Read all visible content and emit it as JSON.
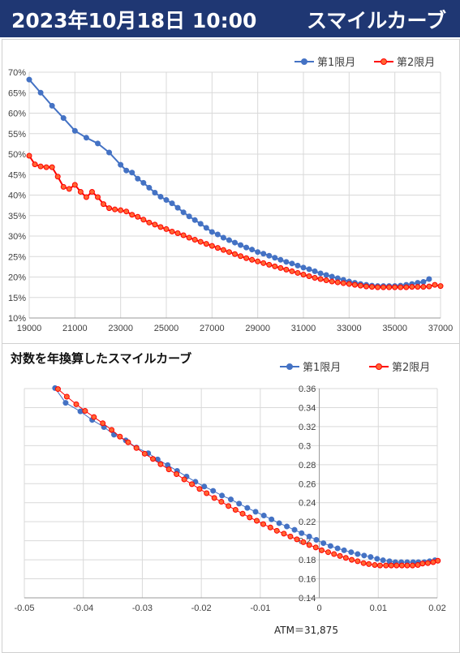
{
  "header": {
    "title": "2023年10月18日 10:00",
    "subtitle": "スマイルカーブ"
  },
  "colors": {
    "header_bg": "#1f3773",
    "series1": "#4472c4",
    "series2": "#ff0000",
    "series2_fill": "#ff6633",
    "grid": "#d9d9d9"
  },
  "chart_data": [
    {
      "type": "line",
      "title": "",
      "xlabel": "",
      "ylabel": "",
      "xlim": [
        19000,
        37000
      ],
      "ylim": [
        10,
        70
      ],
      "x_ticks": [
        "19000",
        "21000",
        "23000",
        "25000",
        "27000",
        "29000",
        "31000",
        "33000",
        "35000",
        "37000"
      ],
      "y_ticks": [
        "10%",
        "15%",
        "20%",
        "25%",
        "30%",
        "35%",
        "40%",
        "45%",
        "50%",
        "55%",
        "60%",
        "65%",
        "70%"
      ],
      "legend_position": "top-right",
      "grid": true,
      "series": [
        {
          "name": "第1限月",
          "color": "#4472c4",
          "points": [
            [
              19000,
              68.2
            ],
            [
              19500,
              65
            ],
            [
              20000,
              61.8
            ],
            [
              20500,
              58.8
            ],
            [
              21000,
              55.7
            ],
            [
              21500,
              54
            ],
            [
              22000,
              52.6
            ],
            [
              22500,
              50.4
            ],
            [
              23000,
              47.4
            ],
            [
              23250,
              46
            ],
            [
              23500,
              45.5
            ],
            [
              23750,
              44
            ],
            [
              24000,
              43
            ],
            [
              24250,
              41.8
            ],
            [
              24500,
              40.6
            ],
            [
              24750,
              39.6
            ],
            [
              25000,
              38.8
            ],
            [
              25250,
              38
            ],
            [
              25500,
              36.9
            ],
            [
              25750,
              35.8
            ],
            [
              26000,
              34.8
            ],
            [
              26250,
              33.9
            ],
            [
              26500,
              33
            ],
            [
              26750,
              32
            ],
            [
              27000,
              31
            ],
            [
              27250,
              30.4
            ],
            [
              27500,
              29.6
            ],
            [
              27750,
              29
            ],
            [
              28000,
              28.4
            ],
            [
              28250,
              27.8
            ],
            [
              28500,
              27.2
            ],
            [
              28750,
              26.7
            ],
            [
              29000,
              26.1
            ],
            [
              29250,
              25.7
            ],
            [
              29500,
              25.2
            ],
            [
              29750,
              24.7
            ],
            [
              30000,
              24.2
            ],
            [
              30250,
              23.7
            ],
            [
              30500,
              23.3
            ],
            [
              30750,
              22.8
            ],
            [
              31000,
              22.3
            ],
            [
              31250,
              21.9
            ],
            [
              31500,
              21.4
            ],
            [
              31750,
              20.9
            ],
            [
              32000,
              20.5
            ],
            [
              32250,
              20.1
            ],
            [
              32500,
              19.7
            ],
            [
              32750,
              19.3
            ],
            [
              33000,
              18.9
            ],
            [
              33250,
              18.6
            ],
            [
              33500,
              18.3
            ],
            [
              33750,
              18.1
            ],
            [
              34000,
              17.9
            ],
            [
              34250,
              17.8
            ],
            [
              34500,
              17.8
            ],
            [
              34750,
              17.8
            ],
            [
              35000,
              17.8
            ],
            [
              35250,
              17.9
            ],
            [
              35500,
              18.1
            ],
            [
              35750,
              18.3
            ],
            [
              36000,
              18.6
            ],
            [
              36250,
              18.8
            ],
            [
              36500,
              19.5
            ]
          ]
        },
        {
          "name": "第2限月",
          "color": "#ff0000",
          "points": [
            [
              19000,
              49.6
            ],
            [
              19250,
              47.5
            ],
            [
              19500,
              47
            ],
            [
              19750,
              46.8
            ],
            [
              20000,
              46.8
            ],
            [
              20250,
              44.5
            ],
            [
              20500,
              42
            ],
            [
              20750,
              41.5
            ],
            [
              21000,
              42.5
            ],
            [
              21250,
              40.8
            ],
            [
              21500,
              39.5
            ],
            [
              21750,
              40.8
            ],
            [
              22000,
              39.5
            ],
            [
              22250,
              37.8
            ],
            [
              22500,
              36.8
            ],
            [
              22750,
              36.5
            ],
            [
              23000,
              36.3
            ],
            [
              23250,
              36
            ],
            [
              23500,
              35.2
            ],
            [
              23750,
              34.7
            ],
            [
              24000,
              34
            ],
            [
              24250,
              33.3
            ],
            [
              24500,
              32.8
            ],
            [
              24750,
              32.2
            ],
            [
              25000,
              31.7
            ],
            [
              25250,
              31.1
            ],
            [
              25500,
              30.7
            ],
            [
              25750,
              30.2
            ],
            [
              26000,
              29.6
            ],
            [
              26250,
              29.1
            ],
            [
              26500,
              28.6
            ],
            [
              26750,
              28.1
            ],
            [
              27000,
              27.6
            ],
            [
              27250,
              27.1
            ],
            [
              27500,
              26.6
            ],
            [
              27750,
              26.1
            ],
            [
              28000,
              25.6
            ],
            [
              28250,
              25.1
            ],
            [
              28500,
              24.6
            ],
            [
              28750,
              24.2
            ],
            [
              29000,
              23.8
            ],
            [
              29250,
              23.4
            ],
            [
              29500,
              23
            ],
            [
              29750,
              22.6
            ],
            [
              30000,
              22.2
            ],
            [
              30250,
              21.8
            ],
            [
              30500,
              21.4
            ],
            [
              30750,
              21
            ],
            [
              31000,
              20.6
            ],
            [
              31250,
              20.2
            ],
            [
              31500,
              19.8
            ],
            [
              31750,
              19.5
            ],
            [
              32000,
              19.2
            ],
            [
              32250,
              18.9
            ],
            [
              32500,
              18.7
            ],
            [
              32750,
              18.5
            ],
            [
              33000,
              18.3
            ],
            [
              33250,
              18.1
            ],
            [
              33500,
              17.9
            ],
            [
              33750,
              17.7
            ],
            [
              34000,
              17.6
            ],
            [
              34250,
              17.5
            ],
            [
              34500,
              17.5
            ],
            [
              34750,
              17.5
            ],
            [
              35000,
              17.5
            ],
            [
              35250,
              17.5
            ],
            [
              35500,
              17.5
            ],
            [
              35750,
              17.6
            ],
            [
              36000,
              17.6
            ],
            [
              36250,
              17.6
            ],
            [
              36500,
              17.7
            ],
            [
              36750,
              18.1
            ],
            [
              37000,
              17.8
            ]
          ]
        }
      ]
    },
    {
      "type": "line",
      "title": "対数を年換算したスマイルカーブ",
      "xlabel": "",
      "ylabel": "",
      "xlim": [
        -0.05,
        0.02
      ],
      "ylim": [
        0.14,
        0.36
      ],
      "x_ticks": [
        "-0.05",
        "-0.04",
        "-0.03",
        "-0.02",
        "-0.01",
        "0",
        "0.01",
        "0.02"
      ],
      "y_ticks": [
        "0.14",
        "0.16",
        "0.18",
        "0.2",
        "0.22",
        "0.24",
        "0.26",
        "0.28",
        "0.3",
        "0.32",
        "0.34",
        "0.36"
      ],
      "legend_position": "top-right",
      "grid": true,
      "annotation": "ATM＝31,875",
      "series": [
        {
          "name": "第1限月",
          "color": "#4472c4",
          "points": [
            [
              -0.0448,
              0.3605
            ],
            [
              -0.043,
              0.345
            ],
            [
              -0.0405,
              0.336
            ],
            [
              -0.0385,
              0.327
            ],
            [
              -0.0365,
              0.3195
            ],
            [
              -0.0348,
              0.3115
            ],
            [
              -0.0328,
              0.3055
            ],
            [
              -0.031,
              0.298
            ],
            [
              -0.029,
              0.292
            ],
            [
              -0.0274,
              0.2855
            ],
            [
              -0.0257,
              0.2795
            ],
            [
              -0.0241,
              0.2735
            ],
            [
              -0.0225,
              0.2675
            ],
            [
              -0.021,
              0.262
            ],
            [
              -0.0195,
              0.257
            ],
            [
              -0.018,
              0.2525
            ],
            [
              -0.0165,
              0.2475
            ],
            [
              -0.015,
              0.2435
            ],
            [
              -0.0136,
              0.239
            ],
            [
              -0.0122,
              0.2345
            ],
            [
              -0.0108,
              0.2305
            ],
            [
              -0.0094,
              0.2265
            ],
            [
              -0.0081,
              0.2225
            ],
            [
              -0.0068,
              0.2185
            ],
            [
              -0.0055,
              0.215
            ],
            [
              -0.0042,
              0.2115
            ],
            [
              -0.003,
              0.208
            ],
            [
              -0.0017,
              0.2045
            ],
            [
              -0.0005,
              0.201
            ],
            [
              0.0007,
              0.1975
            ],
            [
              0.0019,
              0.1945
            ],
            [
              0.0031,
              0.192
            ],
            [
              0.0042,
              0.19
            ],
            [
              0.0054,
              0.188
            ],
            [
              0.0065,
              0.186
            ],
            [
              0.0076,
              0.1845
            ],
            [
              0.0087,
              0.183
            ],
            [
              0.0098,
              0.181
            ],
            [
              0.0108,
              0.1795
            ],
            [
              0.0119,
              0.1785
            ],
            [
              0.0129,
              0.1775
            ],
            [
              0.0139,
              0.1775
            ],
            [
              0.0149,
              0.1775
            ],
            [
              0.0159,
              0.1775
            ],
            [
              0.0168,
              0.1775
            ],
            [
              0.0178,
              0.1775
            ],
            [
              0.0187,
              0.1785
            ],
            [
              0.0196,
              0.1795
            ]
          ]
        },
        {
          "name": "第2限月",
          "color": "#ff0000",
          "points": [
            [
              -0.0443,
              0.3595
            ],
            [
              -0.0428,
              0.3515
            ],
            [
              -0.0412,
              0.3435
            ],
            [
              -0.0397,
              0.3365
            ],
            [
              -0.0382,
              0.33
            ],
            [
              -0.0367,
              0.3235
            ],
            [
              -0.0352,
              0.3165
            ],
            [
              -0.0338,
              0.3095
            ],
            [
              -0.0324,
              0.3035
            ],
            [
              -0.031,
              0.2975
            ],
            [
              -0.0296,
              0.2915
            ],
            [
              -0.0282,
              0.286
            ],
            [
              -0.0269,
              0.2805
            ],
            [
              -0.0255,
              0.275
            ],
            [
              -0.0242,
              0.27
            ],
            [
              -0.0229,
              0.2645
            ],
            [
              -0.0216,
              0.2595
            ],
            [
              -0.0203,
              0.2545
            ],
            [
              -0.0191,
              0.25
            ],
            [
              -0.0178,
              0.245
            ],
            [
              -0.0166,
              0.241
            ],
            [
              -0.0154,
              0.2365
            ],
            [
              -0.0142,
              0.2325
            ],
            [
              -0.013,
              0.2285
            ],
            [
              -0.0118,
              0.2245
            ],
            [
              -0.0106,
              0.221
            ],
            [
              -0.0095,
              0.2175
            ],
            [
              -0.0083,
              0.214
            ],
            [
              -0.0072,
              0.2105
            ],
            [
              -0.006,
              0.2075
            ],
            [
              -0.0049,
              0.2045
            ],
            [
              -0.0038,
              0.2015
            ],
            [
              -0.0027,
              0.1985
            ],
            [
              -0.0017,
              0.1955
            ],
            [
              -0.0006,
              0.193
            ],
            [
              0.0004,
              0.19
            ],
            [
              0.0015,
              0.188
            ],
            [
              0.0025,
              0.186
            ],
            [
              0.0035,
              0.184
            ],
            [
              0.0045,
              0.182
            ],
            [
              0.0055,
              0.18
            ],
            [
              0.0065,
              0.1785
            ],
            [
              0.0075,
              0.1765
            ],
            [
              0.0084,
              0.1755
            ],
            [
              0.0094,
              0.1745
            ],
            [
              0.0103,
              0.174
            ],
            [
              0.0113,
              0.174
            ],
            [
              0.0122,
              0.174
            ],
            [
              0.0131,
              0.174
            ],
            [
              0.014,
              0.174
            ],
            [
              0.0149,
              0.174
            ],
            [
              0.0158,
              0.174
            ],
            [
              0.0167,
              0.1745
            ],
            [
              0.0175,
              0.176
            ],
            [
              0.0184,
              0.1765
            ],
            [
              0.0193,
              0.1775
            ],
            [
              0.0201,
              0.179
            ]
          ]
        }
      ]
    }
  ]
}
